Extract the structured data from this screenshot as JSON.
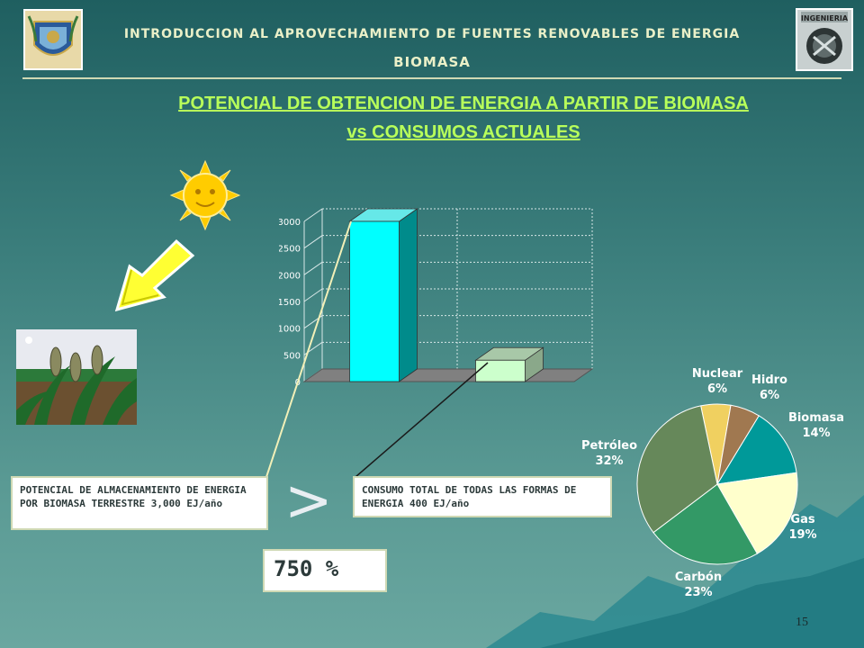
{
  "header": {
    "course": "INTRODUCCION AL APROVECHAMIENTO DE FUENTES RENOVABLES DE ENERGIA",
    "topic": "BIOMASA"
  },
  "title": {
    "line1": "POTENCIAL DE OBTENCION DE ENERGIA  A PARTIR DE BIOMASA",
    "line2": "vs   CONSUMOS ACTUALES"
  },
  "logos": {
    "left": "unam-logo",
    "right": "ingenieria-logo",
    "right_text": "INGENIERIA"
  },
  "boxes": {
    "potential": "POTENCIAL DE ALMACENAMIENTO DE ENERGIA POR BIOMASA TERRESTRE 3,000 EJ/año",
    "consumption": "CONSUMO TOTAL DE TODAS LAS FORMAS DE ENERGIA 400 EJ/año",
    "comparison_symbol": ">",
    "percent": "750 %"
  },
  "page_number": "15",
  "colors": {
    "title": "#b8ff5a",
    "bar1": "#00ffff",
    "bar2": "#ccffcc"
  },
  "chart_data": [
    {
      "type": "bar",
      "categories": [
        "",
        ""
      ],
      "values": [
        3000,
        400
      ],
      "ylim": [
        0,
        3000
      ],
      "yticks": [
        0,
        500,
        1000,
        1500,
        2000,
        2500,
        3000
      ],
      "grid": true,
      "colors": [
        "#00ffff",
        "#ccffcc"
      ]
    },
    {
      "type": "pie",
      "labels": [
        "Nuclear",
        "Hidro",
        "Biomasa",
        "Gas",
        "Carbón",
        "Petróleo"
      ],
      "percent_labels": [
        "6%",
        "6%",
        "14%",
        "19%",
        "23%",
        "32%"
      ],
      "values": [
        6,
        6,
        14,
        19,
        23,
        32
      ],
      "colors": [
        "#f0d060",
        "#a07850",
        "#009999",
        "#ffffcc",
        "#339966",
        "#66885a"
      ]
    }
  ]
}
